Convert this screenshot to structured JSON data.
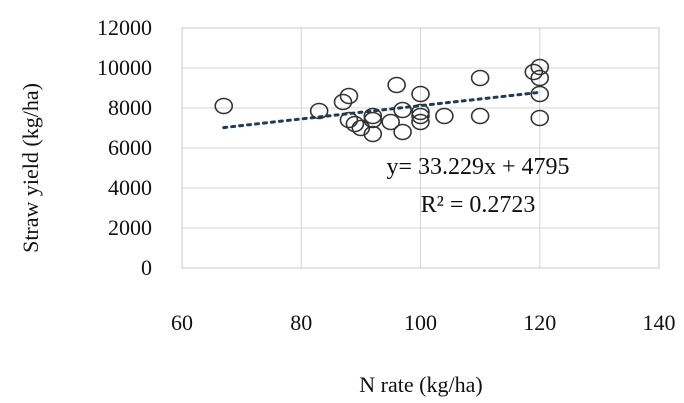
{
  "chart_data": {
    "type": "scatter",
    "xlabel": "N rate (kg/ha)",
    "ylabel": "Straw yield (kg/ha)",
    "xlim": [
      60,
      140
    ],
    "ylim": [
      0,
      12000
    ],
    "x_ticks": [
      "60",
      "80",
      "100",
      "120",
      "140"
    ],
    "y_ticks": [
      "0",
      "2000",
      "4000",
      "6000",
      "8000",
      "10000",
      "12000"
    ],
    "grid": true,
    "marker": "open-circle",
    "points": [
      {
        "x": 67,
        "y": 8100
      },
      {
        "x": 83,
        "y": 7850
      },
      {
        "x": 87,
        "y": 8300
      },
      {
        "x": 88,
        "y": 8600
      },
      {
        "x": 88,
        "y": 7400
      },
      {
        "x": 89,
        "y": 7200
      },
      {
        "x": 90,
        "y": 7000
      },
      {
        "x": 92,
        "y": 7600
      },
      {
        "x": 92,
        "y": 7400
      },
      {
        "x": 92,
        "y": 6700
      },
      {
        "x": 95,
        "y": 7300
      },
      {
        "x": 96,
        "y": 9150
      },
      {
        "x": 97,
        "y": 7900
      },
      {
        "x": 97,
        "y": 6800
      },
      {
        "x": 100,
        "y": 8700
      },
      {
        "x": 100,
        "y": 7800
      },
      {
        "x": 100,
        "y": 7600
      },
      {
        "x": 100,
        "y": 7300
      },
      {
        "x": 104,
        "y": 7600
      },
      {
        "x": 110,
        "y": 9500
      },
      {
        "x": 110,
        "y": 7600
      },
      {
        "x": 119,
        "y": 9800
      },
      {
        "x": 120,
        "y": 10050
      },
      {
        "x": 120,
        "y": 9500
      },
      {
        "x": 120,
        "y": 8700
      },
      {
        "x": 120,
        "y": 7500
      }
    ],
    "trendline": {
      "type": "linear",
      "slope": 33.229,
      "intercept": 4795,
      "x_range": [
        67,
        120
      ],
      "style": "dotted"
    },
    "annotations": {
      "equation": "y= 33.229x + 4795",
      "r_squared": "R² = 0.2723"
    }
  }
}
